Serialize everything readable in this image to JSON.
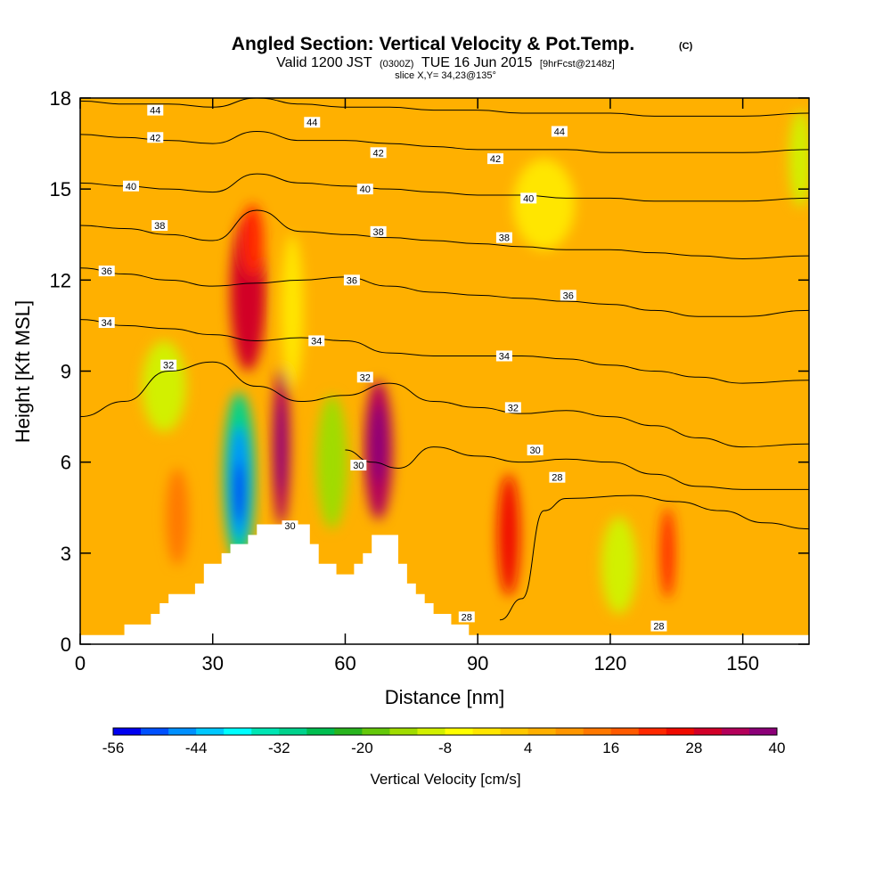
{
  "chart_data": {
    "type": "heatmap",
    "title": "Angled Section: Vertical Velocity & Pot.Temp.",
    "title_unit": "(C)",
    "subtitle_parts": [
      "Valid 1200 JST",
      "(0300Z)",
      "TUE 16 Jun 2015",
      "[9hrFcst@2148z]"
    ],
    "subtitle2": "slice X,Y= 34,23@135°",
    "xlabel": "Distance [nm]",
    "ylabel": "Height [Kft MSL]",
    "xlim": [
      0,
      165
    ],
    "ylim": [
      0,
      18
    ],
    "x_ticks": [
      0,
      30,
      60,
      90,
      120,
      150
    ],
    "x_tick_labels": [
      "0",
      "30",
      "60",
      "90",
      "120",
      "150"
    ],
    "y_ticks": [
      0,
      3,
      6,
      9,
      12,
      15,
      18
    ],
    "y_tick_labels": [
      "0",
      "3",
      "6",
      "9",
      "12",
      "15",
      "18"
    ],
    "colorbar": {
      "label": "Vertical Velocity [cm/s]",
      "min": -56,
      "max": 40,
      "step": 4,
      "tick_labels": [
        "-56",
        "-44",
        "-32",
        "-20",
        "-8",
        "4",
        "16",
        "28",
        "40"
      ],
      "colors": [
        "#0000f0",
        "#0050ff",
        "#0090ff",
        "#00c8ff",
        "#00ffff",
        "#00e6b4",
        "#00d28c",
        "#00be50",
        "#28b41e",
        "#64c80a",
        "#a0dc00",
        "#d2f000",
        "#ffff00",
        "#ffe600",
        "#ffc800",
        "#ffb000",
        "#ff9600",
        "#ff7800",
        "#ff5a00",
        "#ff2800",
        "#f00a00",
        "#d20028",
        "#b4005a",
        "#8c0078"
      ]
    },
    "background_value": 6,
    "cells": [
      {
        "x": 38,
        "y": 11.6,
        "rx": 4,
        "ry": 2.6,
        "v": 28
      },
      {
        "x": 39,
        "y": 13.3,
        "rx": 2.5,
        "ry": 1.2,
        "v": 20
      },
      {
        "x": 45.5,
        "y": 6.5,
        "rx": 2,
        "ry": 2.6,
        "v": 32
      },
      {
        "x": 45.5,
        "y": 6.5,
        "rx": 1,
        "ry": 1.5,
        "v": 38
      },
      {
        "x": 67.5,
        "y": 6.4,
        "rx": 3.2,
        "ry": 2.3,
        "v": 32
      },
      {
        "x": 67.5,
        "y": 6.6,
        "rx": 1.8,
        "ry": 1.3,
        "v": 38
      },
      {
        "x": 97,
        "y": 3.6,
        "rx": 2.5,
        "ry": 2,
        "v": 24
      },
      {
        "x": 133,
        "y": 3,
        "rx": 1.6,
        "ry": 1.5,
        "v": 20
      },
      {
        "x": 22,
        "y": 4.2,
        "rx": 2.5,
        "ry": 1.6,
        "v": 14
      },
      {
        "x": 36,
        "y": 5.5,
        "rx": 3.6,
        "ry": 2.8,
        "v": -30
      },
      {
        "x": 36,
        "y": 5.3,
        "rx": 2.2,
        "ry": 1.9,
        "v": -45
      },
      {
        "x": 36,
        "y": 5.0,
        "rx": 1.1,
        "ry": 1.0,
        "v": -54
      },
      {
        "x": 57,
        "y": 6.0,
        "rx": 3.5,
        "ry": 2.2,
        "v": -16
      },
      {
        "x": 19,
        "y": 8.5,
        "rx": 5,
        "ry": 1.5,
        "v": -12
      },
      {
        "x": 122,
        "y": 2.6,
        "rx": 4,
        "ry": 1.6,
        "v": -12
      },
      {
        "x": 163,
        "y": 16,
        "rx": 2.5,
        "ry": 1.6,
        "v": -10
      },
      {
        "x": 48,
        "y": 11,
        "rx": 2.5,
        "ry": 2.5,
        "v": -4
      },
      {
        "x": 105,
        "y": 14.5,
        "rx": 7,
        "ry": 1.5,
        "v": -2
      }
    ],
    "terrain": [
      [
        0,
        0.3
      ],
      [
        10,
        0.3
      ],
      [
        10,
        0.65
      ],
      [
        16,
        0.65
      ],
      [
        16,
        1.0
      ],
      [
        18,
        1.0
      ],
      [
        18,
        1.35
      ],
      [
        20,
        1.35
      ],
      [
        20,
        1.65
      ],
      [
        26,
        1.65
      ],
      [
        26,
        2.0
      ],
      [
        28,
        2.0
      ],
      [
        28,
        2.65
      ],
      [
        32,
        2.65
      ],
      [
        32,
        3.0
      ],
      [
        34,
        3.0
      ],
      [
        34,
        3.3
      ],
      [
        38,
        3.3
      ],
      [
        38,
        3.6
      ],
      [
        40,
        3.6
      ],
      [
        40,
        3.95
      ],
      [
        52,
        3.95
      ],
      [
        52,
        3.3
      ],
      [
        54,
        3.3
      ],
      [
        54,
        2.65
      ],
      [
        58,
        2.65
      ],
      [
        58,
        2.3
      ],
      [
        62,
        2.3
      ],
      [
        62,
        2.65
      ],
      [
        64,
        2.65
      ],
      [
        64,
        3.0
      ],
      [
        66,
        3.0
      ],
      [
        66,
        3.6
      ],
      [
        72,
        3.6
      ],
      [
        72,
        2.65
      ],
      [
        74,
        2.65
      ],
      [
        74,
        2.0
      ],
      [
        76,
        2.0
      ],
      [
        76,
        1.65
      ],
      [
        78,
        1.65
      ],
      [
        78,
        1.35
      ],
      [
        80,
        1.35
      ],
      [
        80,
        1.0
      ],
      [
        84,
        1.0
      ],
      [
        84,
        0.65
      ],
      [
        88,
        0.65
      ],
      [
        88,
        0.3
      ],
      [
        165,
        0.3
      ]
    ],
    "isentropes": [
      {
        "label": "28",
        "pts": [
          [
            95,
            0.8
          ],
          [
            100,
            1.5
          ],
          [
            105,
            4.4
          ],
          [
            110,
            4.8
          ],
          [
            125,
            4.9
          ],
          [
            135,
            4.7
          ],
          [
            145,
            4.4
          ],
          [
            155,
            4.0
          ],
          [
            165,
            3.8
          ]
        ]
      },
      {
        "label": "30",
        "pts": [
          [
            60,
            6.4
          ],
          [
            66,
            6.0
          ],
          [
            72,
            5.8
          ],
          [
            80,
            6.5
          ],
          [
            90,
            6.2
          ],
          [
            100,
            6.0
          ],
          [
            110,
            6.1
          ],
          [
            120,
            6.0
          ],
          [
            130,
            5.6
          ],
          [
            140,
            5.2
          ],
          [
            150,
            5.1
          ],
          [
            165,
            5.1
          ]
        ]
      },
      {
        "label": "32",
        "pts": [
          [
            0,
            7.5
          ],
          [
            10,
            8.0
          ],
          [
            20,
            9.0
          ],
          [
            30,
            9.3
          ],
          [
            40,
            8.5
          ],
          [
            50,
            8.0
          ],
          [
            60,
            8.2
          ],
          [
            70,
            8.6
          ],
          [
            80,
            8.0
          ],
          [
            90,
            7.8
          ],
          [
            100,
            7.6
          ],
          [
            110,
            7.7
          ],
          [
            120,
            7.5
          ],
          [
            130,
            7.2
          ],
          [
            140,
            6.8
          ],
          [
            150,
            6.5
          ],
          [
            165,
            6.6
          ]
        ]
      },
      {
        "label": "34",
        "pts": [
          [
            0,
            10.7
          ],
          [
            10,
            10.5
          ],
          [
            20,
            10.4
          ],
          [
            30,
            10.2
          ],
          [
            40,
            10.0
          ],
          [
            50,
            10.1
          ],
          [
            60,
            10.0
          ],
          [
            70,
            9.6
          ],
          [
            80,
            9.5
          ],
          [
            90,
            9.5
          ],
          [
            100,
            9.5
          ],
          [
            110,
            9.4
          ],
          [
            120,
            9.2
          ],
          [
            130,
            9.0
          ],
          [
            140,
            8.8
          ],
          [
            150,
            8.6
          ],
          [
            165,
            8.7
          ]
        ]
      },
      {
        "label": "36",
        "pts": [
          [
            0,
            12.4
          ],
          [
            10,
            12.2
          ],
          [
            20,
            12.0
          ],
          [
            30,
            11.8
          ],
          [
            40,
            11.9
          ],
          [
            50,
            12.0
          ],
          [
            60,
            12.1
          ],
          [
            70,
            11.8
          ],
          [
            80,
            11.6
          ],
          [
            90,
            11.5
          ],
          [
            100,
            11.4
          ],
          [
            110,
            11.3
          ],
          [
            120,
            11.2
          ],
          [
            130,
            11.0
          ],
          [
            140,
            10.8
          ],
          [
            150,
            10.8
          ],
          [
            165,
            11.0
          ]
        ]
      },
      {
        "label": "38",
        "pts": [
          [
            0,
            13.8
          ],
          [
            10,
            13.7
          ],
          [
            20,
            13.5
          ],
          [
            30,
            13.3
          ],
          [
            40,
            14.3
          ],
          [
            50,
            13.6
          ],
          [
            60,
            13.5
          ],
          [
            70,
            13.4
          ],
          [
            80,
            13.3
          ],
          [
            90,
            13.2
          ],
          [
            100,
            13.1
          ],
          [
            110,
            13.0
          ],
          [
            120,
            13.0
          ],
          [
            130,
            12.9
          ],
          [
            140,
            12.8
          ],
          [
            150,
            12.7
          ],
          [
            165,
            12.8
          ]
        ]
      },
      {
        "label": "40",
        "pts": [
          [
            0,
            15.2
          ],
          [
            10,
            15.1
          ],
          [
            20,
            15.0
          ],
          [
            30,
            14.9
          ],
          [
            40,
            15.5
          ],
          [
            50,
            15.2
          ],
          [
            60,
            15.1
          ],
          [
            70,
            15.0
          ],
          [
            80,
            14.9
          ],
          [
            90,
            14.8
          ],
          [
            100,
            14.8
          ],
          [
            110,
            14.7
          ],
          [
            120,
            14.7
          ],
          [
            130,
            14.6
          ],
          [
            140,
            14.6
          ],
          [
            150,
            14.6
          ],
          [
            165,
            14.7
          ]
        ]
      },
      {
        "label": "42",
        "pts": [
          [
            0,
            16.8
          ],
          [
            10,
            16.7
          ],
          [
            20,
            16.6
          ],
          [
            30,
            16.5
          ],
          [
            40,
            16.9
          ],
          [
            50,
            16.6
          ],
          [
            60,
            16.6
          ],
          [
            70,
            16.5
          ],
          [
            80,
            16.4
          ],
          [
            90,
            16.3
          ],
          [
            100,
            16.3
          ],
          [
            110,
            16.3
          ],
          [
            120,
            16.2
          ],
          [
            130,
            16.2
          ],
          [
            140,
            16.2
          ],
          [
            150,
            16.2
          ],
          [
            165,
            16.3
          ]
        ]
      },
      {
        "label": "44",
        "pts": [
          [
            0,
            17.9
          ],
          [
            10,
            17.8
          ],
          [
            20,
            17.8
          ],
          [
            30,
            17.7
          ],
          [
            40,
            18.0
          ],
          [
            50,
            17.8
          ],
          [
            60,
            17.7
          ],
          [
            70,
            17.7
          ],
          [
            80,
            17.6
          ],
          [
            90,
            17.6
          ],
          [
            100,
            17.5
          ],
          [
            110,
            17.5
          ],
          [
            120,
            17.5
          ],
          [
            130,
            17.4
          ],
          [
            140,
            17.4
          ],
          [
            150,
            17.4
          ],
          [
            165,
            17.5
          ]
        ]
      }
    ],
    "contour_labels": [
      {
        "text": "44",
        "x": 17,
        "y": 17.6
      },
      {
        "text": "44",
        "x": 52.5,
        "y": 17.2
      },
      {
        "text": "44",
        "x": 108.5,
        "y": 16.9
      },
      {
        "text": "42",
        "x": 17,
        "y": 16.7
      },
      {
        "text": "42",
        "x": 67.5,
        "y": 16.2
      },
      {
        "text": "42",
        "x": 94,
        "y": 16.0
      },
      {
        "text": "40",
        "x": 11.5,
        "y": 15.1
      },
      {
        "text": "40",
        "x": 64.5,
        "y": 15.0
      },
      {
        "text": "40",
        "x": 101.5,
        "y": 14.7
      },
      {
        "text": "38",
        "x": 18,
        "y": 13.8
      },
      {
        "text": "38",
        "x": 67.5,
        "y": 13.6
      },
      {
        "text": "38",
        "x": 96,
        "y": 13.4
      },
      {
        "text": "36",
        "x": 6,
        "y": 12.3
      },
      {
        "text": "36",
        "x": 61.5,
        "y": 12.0
      },
      {
        "text": "36",
        "x": 110.5,
        "y": 11.5
      },
      {
        "text": "34",
        "x": 6,
        "y": 10.6
      },
      {
        "text": "34",
        "x": 53.5,
        "y": 10.0
      },
      {
        "text": "34",
        "x": 96,
        "y": 9.5
      },
      {
        "text": "32",
        "x": 20,
        "y": 9.2
      },
      {
        "text": "32",
        "x": 64.5,
        "y": 8.8
      },
      {
        "text": "32",
        "x": 98,
        "y": 7.8
      },
      {
        "text": "30",
        "x": 103,
        "y": 6.4
      },
      {
        "text": "30",
        "x": 63,
        "y": 5.9
      },
      {
        "text": "30",
        "x": 47.5,
        "y": 3.9
      },
      {
        "text": "28",
        "x": 108,
        "y": 5.5
      },
      {
        "text": "28",
        "x": 87.5,
        "y": 0.9
      },
      {
        "text": "28",
        "x": 131,
        "y": 0.6
      }
    ]
  }
}
